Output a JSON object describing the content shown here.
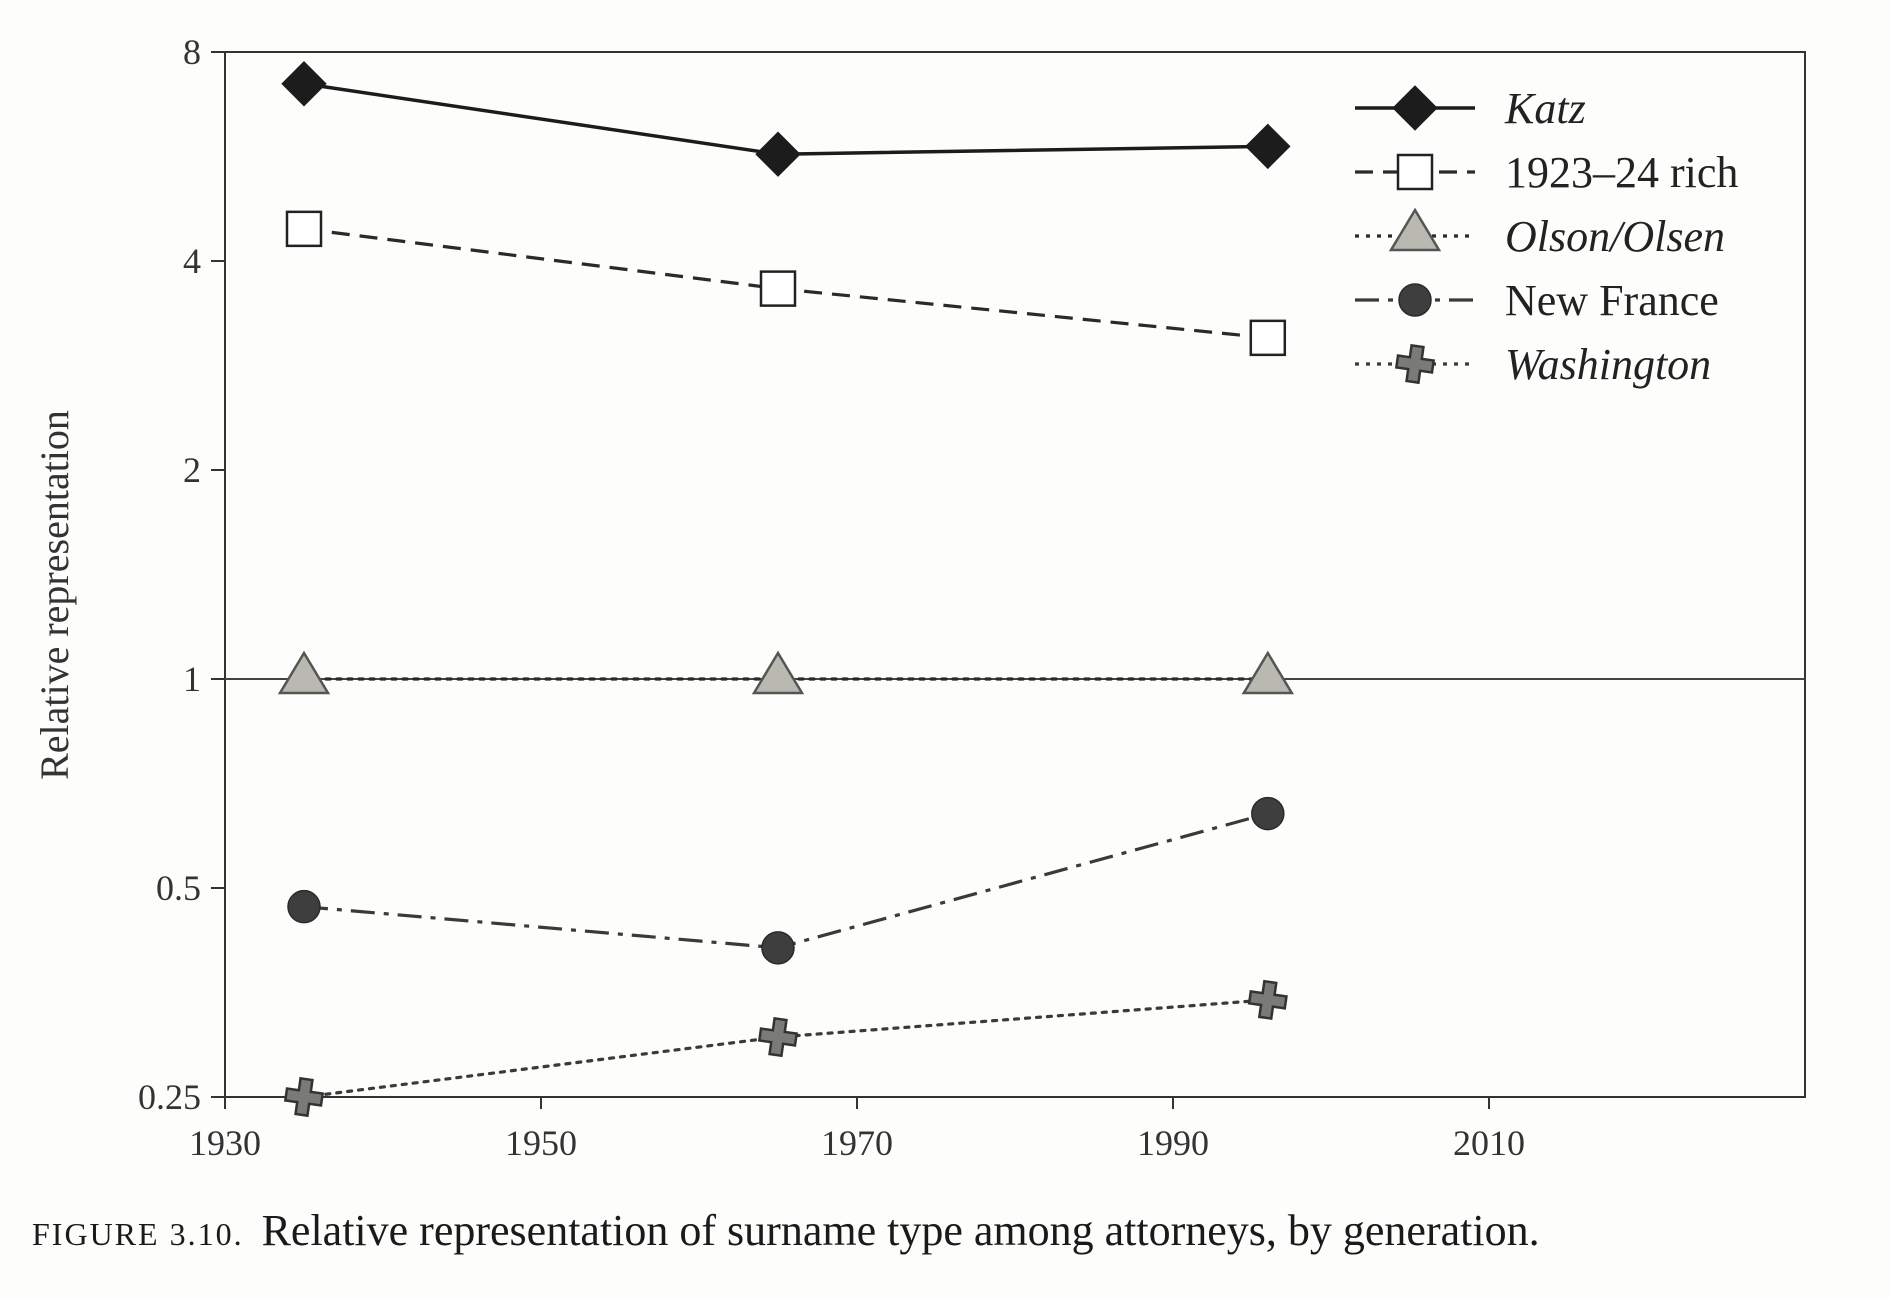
{
  "chart_data": {
    "type": "line",
    "title": "",
    "xlabel": "",
    "ylabel": "Relative representation",
    "yscale": "log2",
    "xlim": [
      1930,
      2030
    ],
    "ylim": [
      0.25,
      8
    ],
    "xticks": [
      1930,
      1950,
      1970,
      1990,
      2010
    ],
    "yticks": [
      {
        "value": 0.25,
        "label": "0.25"
      },
      {
        "value": 0.5,
        "label": "0.5"
      },
      {
        "value": 1,
        "label": "1"
      },
      {
        "value": 2,
        "label": "2"
      },
      {
        "value": 4,
        "label": "4"
      },
      {
        "value": 8,
        "label": "8"
      }
    ],
    "x": [
      1935,
      1965,
      1996
    ],
    "series": [
      {
        "name": "Katz",
        "italic": true,
        "values": [
          7.2,
          5.7,
          5.85
        ],
        "line": "solid",
        "marker": "diamond",
        "color": "#1c1c1c"
      },
      {
        "name": "1923–24 rich",
        "italic": false,
        "values": [
          4.45,
          3.65,
          3.1
        ],
        "line": "dashed",
        "marker": "square-open",
        "color": "#2a2a2a"
      },
      {
        "name": "Olson/Olsen",
        "italic": true,
        "values": [
          1.0,
          1.0,
          1.0
        ],
        "line": "dotted",
        "marker": "triangle",
        "color": "#2a2a2a"
      },
      {
        "name": "New France",
        "italic": false,
        "values": [
          0.47,
          0.41,
          0.64
        ],
        "line": "dashdot",
        "marker": "circle",
        "color": "#3a3a3a"
      },
      {
        "name": "Washington",
        "italic": true,
        "values": [
          0.25,
          0.305,
          0.345
        ],
        "line": "dotted",
        "marker": "cross",
        "color": "#3a3a3a"
      }
    ],
    "reference_line": 1,
    "grid": false,
    "legend_position": "top-right"
  },
  "caption": {
    "figure_number": "FIGURE 3.10.",
    "text": "Relative representation of surname type among attorneys, by generation."
  }
}
